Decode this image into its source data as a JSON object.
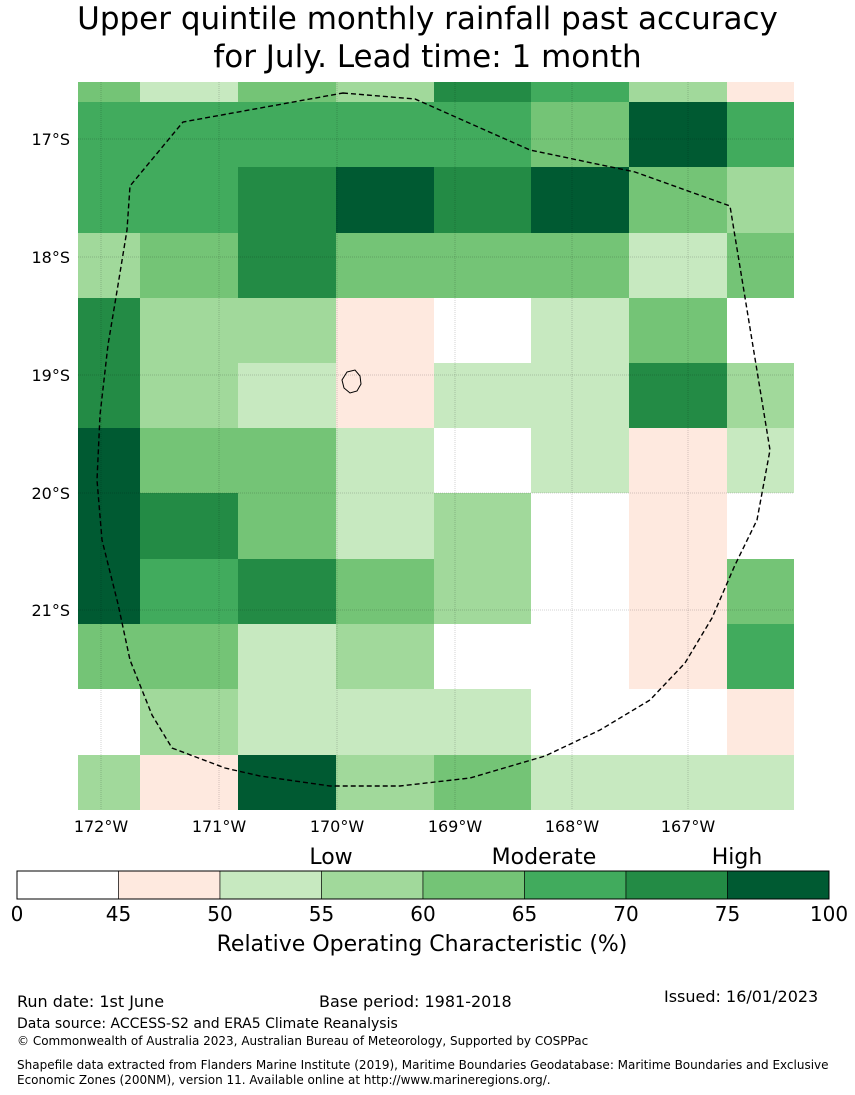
{
  "title": {
    "line1": "Upper quintile monthly rainfall past accuracy",
    "line2": "for July. Lead time: 1 month"
  },
  "map": {
    "lat_labels": [
      "17°S",
      "18°S",
      "19°S",
      "20°S",
      "21°S"
    ],
    "lon_labels": [
      "172°W",
      "171°W",
      "170°W",
      "169°W",
      "168°W",
      "167°W"
    ],
    "legend_colors": [
      "#ffffff",
      "#fee9df",
      "#c7e9c0",
      "#a1d99b",
      "#74c476",
      "#41ab5d",
      "#238b45",
      "#005a32"
    ],
    "grid_category_index": [
      [
        4,
        2,
        4,
        3,
        6,
        5,
        3,
        1
      ],
      [
        5,
        5,
        5,
        5,
        5,
        4,
        7,
        5
      ],
      [
        5,
        5,
        6,
        7,
        6,
        7,
        4,
        3
      ],
      [
        3,
        4,
        6,
        4,
        4,
        4,
        2,
        4
      ],
      [
        6,
        3,
        3,
        1,
        0,
        2,
        4,
        0
      ],
      [
        6,
        3,
        2,
        1,
        2,
        2,
        6,
        3
      ],
      [
        7,
        4,
        4,
        2,
        0,
        2,
        1,
        2
      ],
      [
        7,
        6,
        4,
        2,
        3,
        0,
        1,
        0
      ],
      [
        7,
        5,
        6,
        4,
        3,
        0,
        1,
        4
      ],
      [
        4,
        4,
        2,
        3,
        0,
        0,
        1,
        5
      ],
      [
        0,
        3,
        2,
        2,
        2,
        0,
        0,
        1
      ],
      [
        3,
        1,
        7,
        3,
        4,
        2,
        2,
        2
      ]
    ]
  },
  "colorbar": {
    "category_labels": {
      "low": "Low",
      "moderate": "Moderate",
      "high": "High"
    },
    "ticks": [
      "0",
      "45",
      "50",
      "55",
      "60",
      "65",
      "70",
      "75",
      "100"
    ],
    "title": "Relative Operating Characteristic (%)"
  },
  "footer": {
    "run_date": "Run date: 1st June",
    "base_period": "Base period: 1981-2018",
    "issued": "Issued: 16/01/2023",
    "data_source": "Data source: ACCESS-S2 and ERA5 Climate Reanalysis",
    "copyright": "© Commonwealth of Australia 2023, Australian Bureau of Meteorology, Supported by COSPPac",
    "shapefile_line1": "Shapefile data extracted from Flanders Marine Institute (2019), Maritime Boundaries Geodatabase: Maritime Boundaries and Exclusive",
    "shapefile_line2": "Economic Zones (200NM), version 11. Available online at http://www.marineregions.org/."
  }
}
